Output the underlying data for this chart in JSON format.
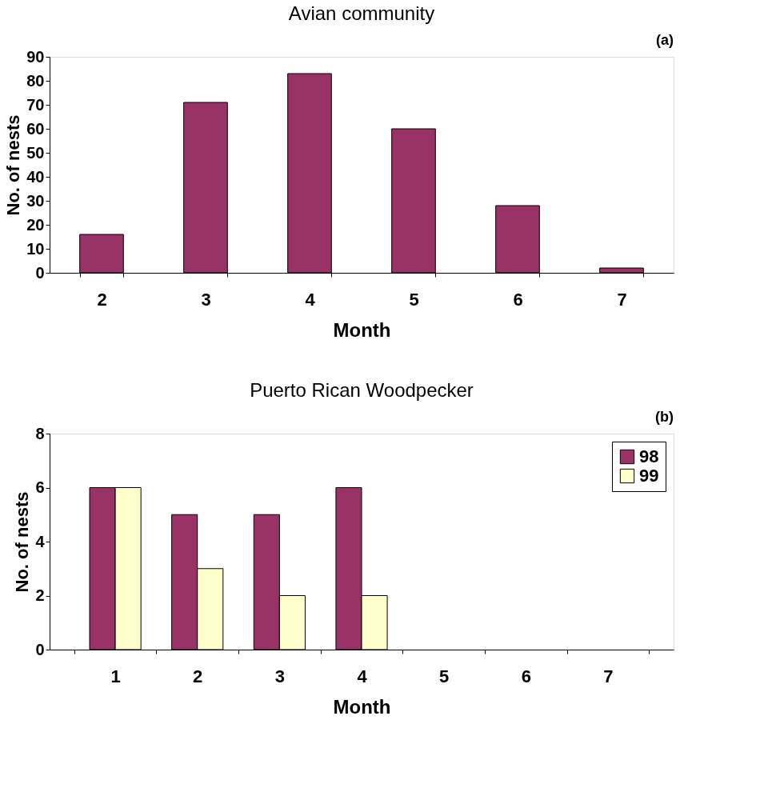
{
  "chart_data": [
    {
      "type": "bar",
      "title": "Avian community",
      "annotations": [
        "(a)"
      ],
      "xlabel": "Month",
      "ylabel": "No. of nests",
      "categories": [
        "2",
        "3",
        "4",
        "5",
        "6",
        "7"
      ],
      "series": [
        {
          "color": "#993366",
          "values": [
            16,
            71,
            83,
            60,
            28,
            2
          ]
        }
      ],
      "ylim": [
        0,
        90
      ],
      "yticks": [
        0,
        10,
        20,
        30,
        40,
        50,
        60,
        70,
        80,
        90
      ],
      "grid": false,
      "legend": false
    },
    {
      "type": "bar",
      "title": "Puerto Rican Woodpecker",
      "annotations": [
        "(b)"
      ],
      "xlabel": "Month",
      "ylabel": "No. of nests",
      "categories": [
        "1",
        "2",
        "3",
        "4",
        "5",
        "6",
        "7"
      ],
      "series": [
        {
          "name": "98",
          "color": "#993366",
          "values": [
            6,
            5,
            5,
            6,
            null,
            null,
            null
          ]
        },
        {
          "name": "99",
          "color": "#ffffcc",
          "values": [
            6,
            3,
            2,
            2,
            null,
            null,
            null
          ]
        }
      ],
      "ylim": [
        0,
        8
      ],
      "yticks": [
        0,
        2,
        4,
        6,
        8
      ],
      "grid": false,
      "legend": "top right"
    }
  ]
}
